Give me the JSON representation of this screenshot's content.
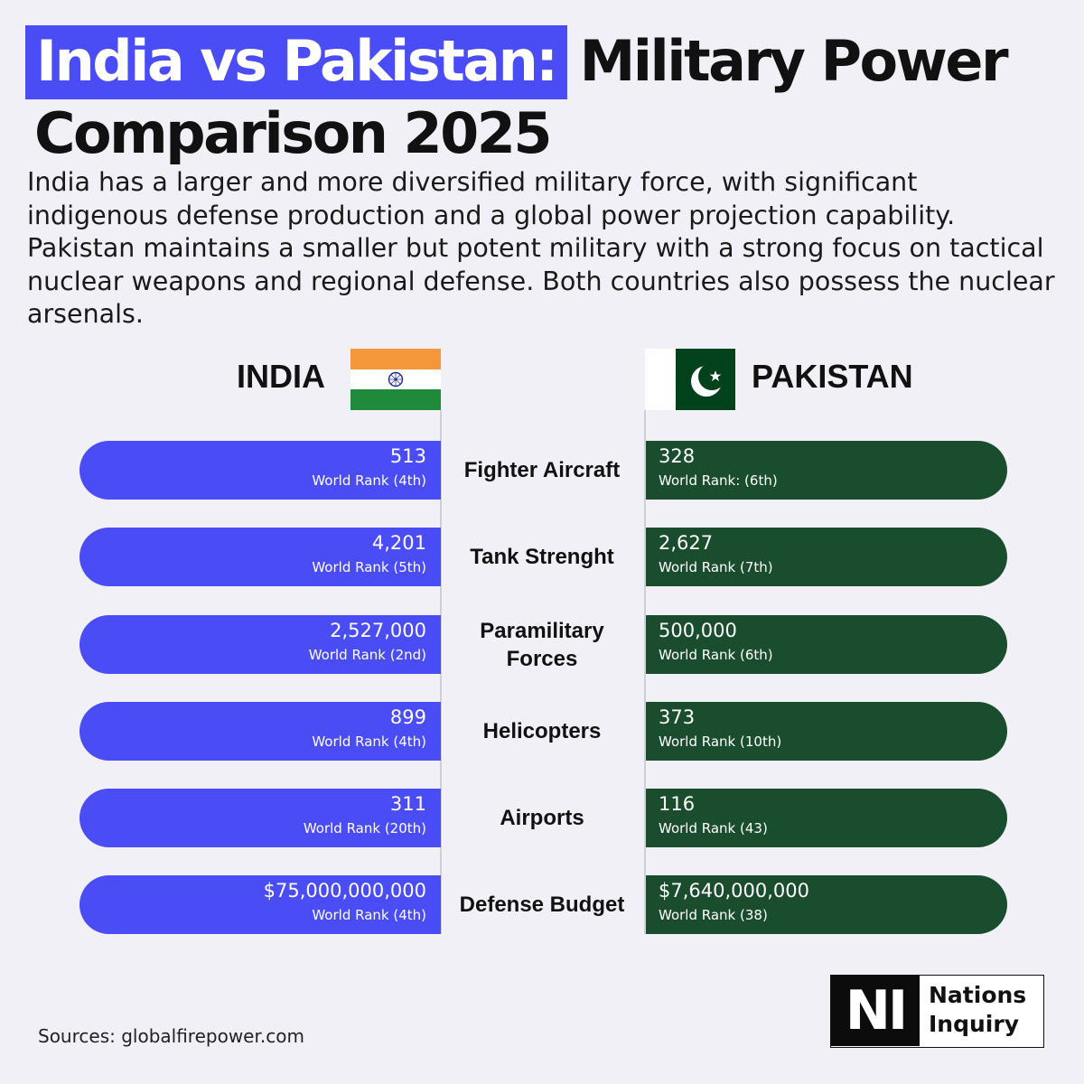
{
  "title": {
    "highlight": "India vs Pakistan:",
    "rest": "Military Power",
    "line2": "Comparison 2025"
  },
  "intro": "India has a larger and more diversified military force, with significant indigenous defense production and a global power projection capability. Pakistan maintains a smaller but potent military with a strong focus on tactical nuclear weapons and regional defense. Both countries also possess the nuclear arsenals.",
  "countries": {
    "left": {
      "name": "INDIA",
      "flag": "india-flag-icon",
      "color": "#4a4cf5"
    },
    "right": {
      "name": "PAKISTAN",
      "flag": "pakistan-flag-icon",
      "color": "#1a4d2e"
    }
  },
  "rows": [
    {
      "metric": "Fighter Aircraft",
      "india_value": "513",
      "india_rank": "World Rank (4th)",
      "pakistan_value": "328",
      "pakistan_rank": "World Rank: (6th)"
    },
    {
      "metric": "Tank Strenght",
      "india_value": "4,201",
      "india_rank": "World Rank (5th)",
      "pakistan_value": "2,627",
      "pakistan_rank": "World Rank (7th)"
    },
    {
      "metric": "Paramilitary Forces",
      "india_value": "2,527,000",
      "india_rank": "World Rank (2nd)",
      "pakistan_value": "500,000",
      "pakistan_rank": "World Rank (6th)"
    },
    {
      "metric": "Helicopters",
      "india_value": "899",
      "india_rank": "World Rank (4th)",
      "pakistan_value": "373",
      "pakistan_rank": "World Rank (10th)"
    },
    {
      "metric": "Airports",
      "india_value": "311",
      "india_rank": "World Rank (20th)",
      "pakistan_value": "116",
      "pakistan_rank": "World Rank (43)"
    },
    {
      "metric": "Defense Budget",
      "india_value": "$75,000,000,000",
      "india_rank": "World Rank (4th)",
      "pakistan_value": "$7,640,000,000",
      "pakistan_rank": "World Rank (38)"
    }
  ],
  "sources": "Sources: globalfirepower.com",
  "logo": {
    "mark": "NI",
    "line1": "Nations",
    "line2": "Inquiry"
  }
}
